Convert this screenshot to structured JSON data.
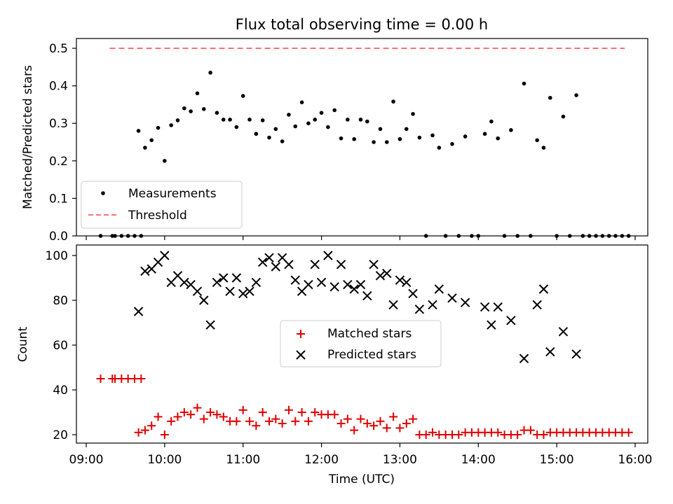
{
  "figure": {
    "title": "Flux total observing time = 0.00 h"
  },
  "chart_data": [
    {
      "type": "scatter",
      "ylabel": "Matched/Predicted stars",
      "xlabel": "",
      "xlim": [
        "09:00",
        "16:00"
      ],
      "ylim": [
        0,
        0.52
      ],
      "yticks": [
        "0.0",
        "0.1",
        "0.2",
        "0.3",
        "0.4",
        "0.5"
      ],
      "legend": {
        "placement": "lower-left",
        "entries": [
          "Measurements",
          "Threshold"
        ]
      },
      "series": [
        {
          "name": "Measurements",
          "marker": "dot",
          "color": "#000000",
          "points": [
            [
              "09:11",
              0
            ],
            [
              "09:20",
              0
            ],
            [
              "09:22",
              0
            ],
            [
              "09:27",
              0
            ],
            [
              "09:32",
              0
            ],
            [
              "09:37",
              0
            ],
            [
              "09:42",
              0
            ],
            [
              "09:40",
              0.28
            ],
            [
              "09:45",
              0.235
            ],
            [
              "09:50",
              0.255
            ],
            [
              "09:55",
              0.288
            ],
            [
              "10:00",
              0.2
            ],
            [
              "10:05",
              0.295
            ],
            [
              "10:10",
              0.308
            ],
            [
              "10:15",
              0.34
            ],
            [
              "10:20",
              0.332
            ],
            [
              "10:25",
              0.38
            ],
            [
              "10:30",
              0.338
            ],
            [
              "10:35",
              0.435
            ],
            [
              "10:40",
              0.328
            ],
            [
              "10:45",
              0.31
            ],
            [
              "10:50",
              0.31
            ],
            [
              "10:55",
              0.29
            ],
            [
              "11:00",
              0.373
            ],
            [
              "11:05",
              0.31
            ],
            [
              "11:10",
              0.272
            ],
            [
              "11:15",
              0.308
            ],
            [
              "11:20",
              0.262
            ],
            [
              "11:25",
              0.285
            ],
            [
              "11:30",
              0.252
            ],
            [
              "11:35",
              0.323
            ],
            [
              "11:40",
              0.292
            ],
            [
              "11:45",
              0.356
            ],
            [
              "11:50",
              0.3
            ],
            [
              "11:55",
              0.31
            ],
            [
              "12:00",
              0.328
            ],
            [
              "12:05",
              0.29
            ],
            [
              "12:10",
              0.335
            ],
            [
              "12:15",
              0.26
            ],
            [
              "12:20",
              0.31
            ],
            [
              "12:25",
              0.258
            ],
            [
              "12:30",
              0.31
            ],
            [
              "12:35",
              0.305
            ],
            [
              "12:40",
              0.25
            ],
            [
              "12:45",
              0.285
            ],
            [
              "12:50",
              0.25
            ],
            [
              "12:55",
              0.358
            ],
            [
              "13:00",
              0.258
            ],
            [
              "13:05",
              0.285
            ],
            [
              "13:10",
              0.325
            ],
            [
              "13:15",
              0.262
            ],
            [
              "13:20",
              0
            ],
            [
              "13:25",
              0.268
            ],
            [
              "13:30",
              0.235
            ],
            [
              "13:35",
              0
            ],
            [
              "13:40",
              0.245
            ],
            [
              "13:45",
              0
            ],
            [
              "13:50",
              0.265
            ],
            [
              "13:55",
              0
            ],
            [
              "14:00",
              0
            ],
            [
              "14:05",
              0.272
            ],
            [
              "14:10",
              0.305
            ],
            [
              "14:15",
              0.26
            ],
            [
              "14:20",
              0
            ],
            [
              "14:25",
              0.282
            ],
            [
              "14:30",
              0
            ],
            [
              "14:35",
              0.406
            ],
            [
              "14:40",
              0
            ],
            [
              "14:45",
              0.255
            ],
            [
              "14:50",
              0.235
            ],
            [
              "14:55",
              0.368
            ],
            [
              "15:00",
              0
            ],
            [
              "15:05",
              0.318
            ],
            [
              "15:10",
              0
            ],
            [
              "15:15",
              0.375
            ],
            [
              "15:20",
              0
            ],
            [
              "15:25",
              0
            ],
            [
              "15:30",
              0
            ],
            [
              "15:35",
              0
            ],
            [
              "15:40",
              0
            ],
            [
              "15:45",
              0
            ],
            [
              "15:50",
              0
            ],
            [
              "15:55",
              0
            ]
          ]
        },
        {
          "name": "Threshold",
          "type": "line",
          "style": "dashed",
          "color": "#ff7070",
          "x": [
            "09:18",
            "15:52"
          ],
          "y": [
            0.5,
            0.5
          ]
        }
      ]
    },
    {
      "type": "scatter",
      "ylabel": "Count",
      "xlabel": "Time (UTC)",
      "xlim": [
        "09:00",
        "16:00"
      ],
      "ylim": [
        16,
        104
      ],
      "yticks": [
        "20",
        "40",
        "60",
        "80",
        "100"
      ],
      "xticks": [
        "09:00",
        "10:00",
        "11:00",
        "12:00",
        "13:00",
        "14:00",
        "15:00",
        "16:00"
      ],
      "legend": {
        "placement": "center",
        "entries": [
          "Matched stars",
          "Predicted stars"
        ]
      },
      "series": [
        {
          "name": "Matched stars",
          "marker": "plus",
          "color": "#e00000",
          "points": [
            [
              "09:11",
              45
            ],
            [
              "09:20",
              45
            ],
            [
              "09:22",
              45
            ],
            [
              "09:27",
              45
            ],
            [
              "09:32",
              45
            ],
            [
              "09:37",
              45
            ],
            [
              "09:42",
              45
            ],
            [
              "09:40",
              21
            ],
            [
              "09:45",
              22
            ],
            [
              "09:50",
              24
            ],
            [
              "09:55",
              28
            ],
            [
              "10:00",
              20
            ],
            [
              "10:05",
              26
            ],
            [
              "10:10",
              28
            ],
            [
              "10:15",
              30
            ],
            [
              "10:20",
              29
            ],
            [
              "10:25",
              32
            ],
            [
              "10:30",
              27
            ],
            [
              "10:35",
              30
            ],
            [
              "10:40",
              29
            ],
            [
              "10:45",
              28
            ],
            [
              "10:50",
              26
            ],
            [
              "10:55",
              26
            ],
            [
              "11:00",
              31
            ],
            [
              "11:05",
              26
            ],
            [
              "11:10",
              24
            ],
            [
              "11:15",
              30
            ],
            [
              "11:20",
              26
            ],
            [
              "11:25",
              27
            ],
            [
              "11:30",
              25
            ],
            [
              "11:35",
              31
            ],
            [
              "11:40",
              26
            ],
            [
              "11:45",
              30
            ],
            [
              "11:50",
              26
            ],
            [
              "11:55",
              30
            ],
            [
              "12:00",
              29
            ],
            [
              "12:05",
              29
            ],
            [
              "12:10",
              29
            ],
            [
              "12:15",
              25
            ],
            [
              "12:20",
              27
            ],
            [
              "12:25",
              22
            ],
            [
              "12:30",
              27
            ],
            [
              "12:35",
              25
            ],
            [
              "12:40",
              24
            ],
            [
              "12:45",
              26
            ],
            [
              "12:50",
              23
            ],
            [
              "12:55",
              28
            ],
            [
              "13:00",
              23
            ],
            [
              "13:05",
              25
            ],
            [
              "13:10",
              27
            ],
            [
              "13:15",
              20
            ],
            [
              "13:20",
              20
            ],
            [
              "13:25",
              21
            ],
            [
              "13:30",
              20
            ],
            [
              "13:35",
              20
            ],
            [
              "13:40",
              20
            ],
            [
              "13:45",
              20
            ],
            [
              "13:50",
              21
            ],
            [
              "13:55",
              21
            ],
            [
              "14:00",
              21
            ],
            [
              "14:05",
              21
            ],
            [
              "14:10",
              21
            ],
            [
              "14:15",
              21
            ],
            [
              "14:20",
              20
            ],
            [
              "14:25",
              20
            ],
            [
              "14:30",
              20
            ],
            [
              "14:35",
              22
            ],
            [
              "14:40",
              22
            ],
            [
              "14:45",
              20
            ],
            [
              "14:50",
              20
            ],
            [
              "14:55",
              21
            ],
            [
              "15:00",
              21
            ],
            [
              "15:05",
              21
            ],
            [
              "15:10",
              21
            ],
            [
              "15:15",
              21
            ],
            [
              "15:20",
              21
            ],
            [
              "15:25",
              21
            ],
            [
              "15:30",
              21
            ],
            [
              "15:35",
              21
            ],
            [
              "15:40",
              21
            ],
            [
              "15:45",
              21
            ],
            [
              "15:50",
              21
            ],
            [
              "15:55",
              21
            ]
          ]
        },
        {
          "name": "Predicted stars",
          "marker": "x",
          "color": "#000000",
          "points": [
            [
              "09:40",
              75
            ],
            [
              "09:45",
              93
            ],
            [
              "09:50",
              94
            ],
            [
              "09:55",
              97
            ],
            [
              "10:00",
              100
            ],
            [
              "10:05",
              88
            ],
            [
              "10:10",
              91
            ],
            [
              "10:15",
              88
            ],
            [
              "10:20",
              87
            ],
            [
              "10:25",
              84
            ],
            [
              "10:30",
              80
            ],
            [
              "10:35",
              69
            ],
            [
              "10:40",
              88
            ],
            [
              "10:45",
              90
            ],
            [
              "10:50",
              84
            ],
            [
              "10:55",
              90
            ],
            [
              "11:00",
              83
            ],
            [
              "11:05",
              84
            ],
            [
              "11:10",
              88
            ],
            [
              "11:15",
              97
            ],
            [
              "11:20",
              99
            ],
            [
              "11:25",
              95
            ],
            [
              "11:30",
              99
            ],
            [
              "11:35",
              96
            ],
            [
              "11:40",
              89
            ],
            [
              "11:45",
              84
            ],
            [
              "11:50",
              87
            ],
            [
              "11:55",
              96
            ],
            [
              "12:00",
              88
            ],
            [
              "12:05",
              100
            ],
            [
              "12:10",
              86
            ],
            [
              "12:15",
              96
            ],
            [
              "12:20",
              87
            ],
            [
              "12:25",
              85
            ],
            [
              "12:30",
              87
            ],
            [
              "12:35",
              82
            ],
            [
              "12:40",
              96
            ],
            [
              "12:45",
              91
            ],
            [
              "12:50",
              92
            ],
            [
              "12:55",
              78
            ],
            [
              "13:00",
              89
            ],
            [
              "13:05",
              88
            ],
            [
              "13:10",
              83
            ],
            [
              "13:15",
              76
            ],
            [
              "13:25",
              78
            ],
            [
              "13:30",
              85
            ],
            [
              "13:40",
              81
            ],
            [
              "13:50",
              79
            ],
            [
              "14:05",
              77
            ],
            [
              "14:10",
              69
            ],
            [
              "14:15",
              77
            ],
            [
              "14:25",
              71
            ],
            [
              "14:35",
              54
            ],
            [
              "14:45",
              78
            ],
            [
              "14:50",
              85
            ],
            [
              "14:55",
              57
            ],
            [
              "15:05",
              66
            ],
            [
              "15:15",
              56
            ]
          ]
        }
      ]
    }
  ]
}
